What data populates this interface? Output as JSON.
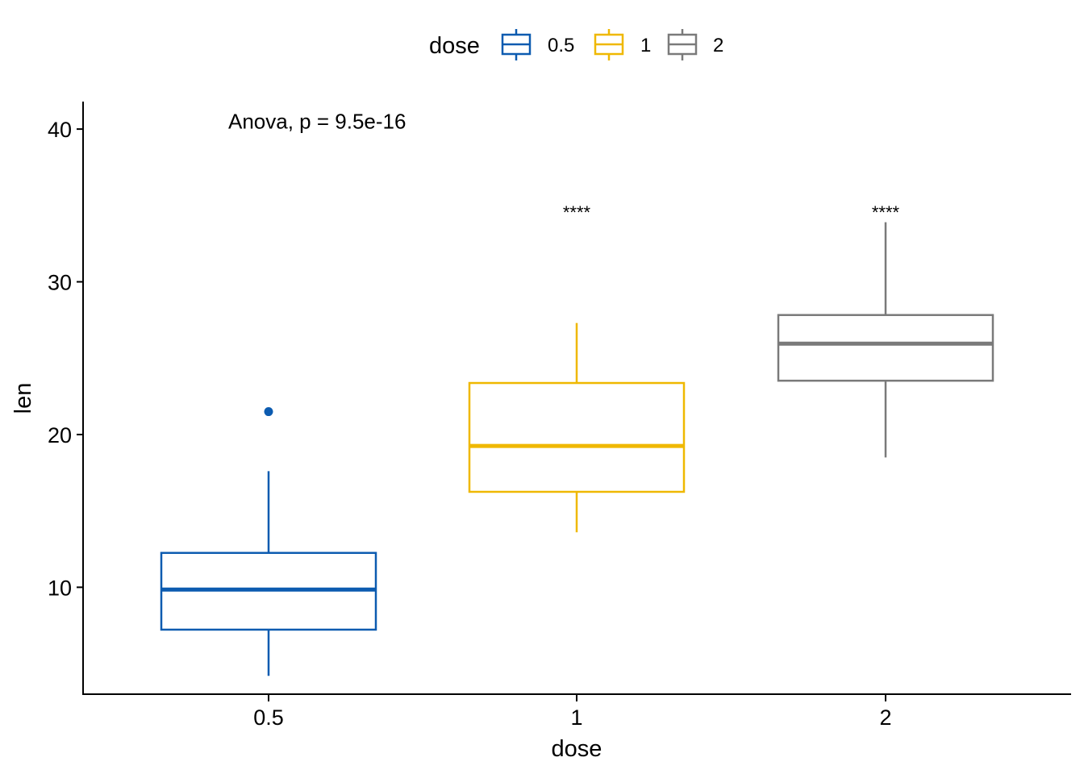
{
  "chart_data": {
    "type": "boxplot",
    "xlabel": "dose",
    "ylabel": "len",
    "categories": [
      "0.5",
      "1",
      "2"
    ],
    "ylim": [
      3,
      41.8
    ],
    "yticks": [
      10,
      20,
      30,
      40
    ],
    "grid": false,
    "legend": {
      "title": "dose",
      "position": "top",
      "entries": [
        "0.5",
        "1",
        "2"
      ]
    },
    "colors": [
      "#0C5BB0",
      "#EFB800",
      "#7A7A7A"
    ],
    "boxes": [
      {
        "category": "0.5",
        "whisker_low": 4.2,
        "q1": 7.225,
        "median": 9.85,
        "q3": 12.25,
        "whisker_high": 17.6,
        "outliers": [
          21.5
        ]
      },
      {
        "category": "1",
        "whisker_low": 13.6,
        "q1": 16.25,
        "median": 19.25,
        "q3": 23.375,
        "whisker_high": 27.3,
        "outliers": []
      },
      {
        "category": "2",
        "whisker_low": 18.5,
        "q1": 23.525,
        "median": 25.95,
        "q3": 27.825,
        "whisker_high": 33.9,
        "outliers": []
      }
    ],
    "annotations": [
      {
        "text": "Anova, p = 9.5e-16",
        "x_category": "0.5",
        "y": 40.5
      }
    ],
    "significance": [
      {
        "category": "0.5",
        "text": ""
      },
      {
        "category": "1",
        "text": "****"
      },
      {
        "category": "2",
        "text": "****"
      }
    ]
  }
}
